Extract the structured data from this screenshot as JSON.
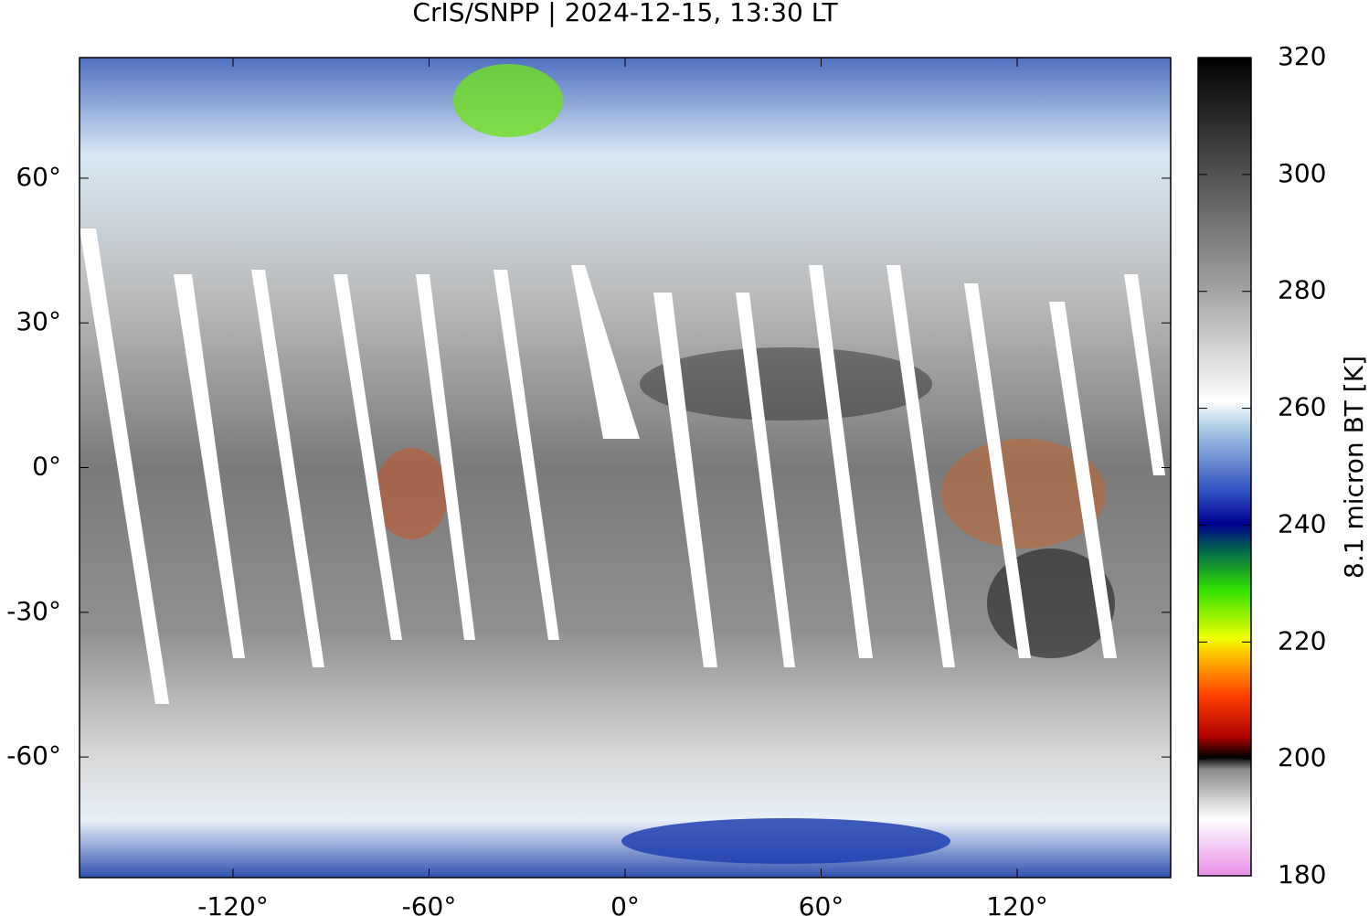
{
  "chart_data": {
    "type": "map",
    "title": "CrIS/SNPP | 2024-12-15, 13:30 LT",
    "xlim": [
      -167,
      167
    ],
    "ylim": [
      -85,
      85
    ],
    "xticks": [
      {
        "value": -120,
        "label": "-120°"
      },
      {
        "value": -60,
        "label": "-60°"
      },
      {
        "value": 0,
        "label": "0°"
      },
      {
        "value": 60,
        "label": "60°"
      },
      {
        "value": 120,
        "label": "120°"
      }
    ],
    "yticks": [
      {
        "value": -60,
        "label": "-60°"
      },
      {
        "value": -30,
        "label": "-30°"
      },
      {
        "value": 0,
        "label": "0°"
      },
      {
        "value": 30,
        "label": "30°"
      },
      {
        "value": 60,
        "label": "60°"
      }
    ],
    "colorbar": {
      "label": "8.1 micron BT [K]",
      "lim": [
        180,
        320
      ],
      "ticks": [
        180,
        200,
        220,
        240,
        260,
        280,
        300,
        320
      ]
    }
  }
}
